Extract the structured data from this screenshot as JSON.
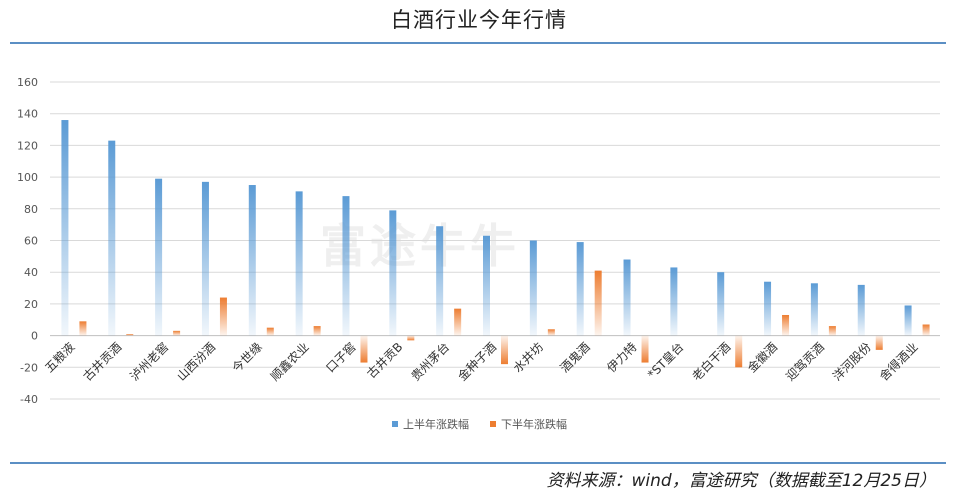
{
  "title": "白酒行业今年行情",
  "source": "资料来源：wind，富途研究（数据截至12月25日）",
  "watermark": "富途牛牛",
  "chart_data": {
    "type": "bar",
    "categories": [
      "五粮液",
      "古井贡酒",
      "泸州老窖",
      "山西汾酒",
      "今世缘",
      "顺鑫农业",
      "口子窖",
      "古井贡B",
      "贵州茅台",
      "金种子酒",
      "水井坊",
      "酒鬼酒",
      "伊力特",
      "*ST皇台",
      "老白干酒",
      "金徽酒",
      "迎驾贡酒",
      "洋河股份",
      "舍得酒业"
    ],
    "series": [
      {
        "name": "上半年涨跌幅",
        "color": "#5b9bd5",
        "values": [
          136,
          123,
          99,
          97,
          95,
          91,
          88,
          79,
          69,
          63,
          60,
          59,
          48,
          43,
          40,
          34,
          33,
          32,
          19
        ]
      },
      {
        "name": "下半年涨跌幅",
        "color": "#ed7d31",
        "values": [
          9,
          1,
          3,
          24,
          5,
          6,
          -17,
          -3,
          17,
          -18,
          4,
          41,
          -17,
          0,
          -20,
          13,
          6,
          -9,
          7
        ]
      }
    ],
    "ylim": [
      -40,
      160
    ],
    "yticks": [
      -40,
      -20,
      0,
      20,
      40,
      60,
      80,
      100,
      120,
      140,
      160
    ],
    "grid": true,
    "legend": "bottom"
  }
}
